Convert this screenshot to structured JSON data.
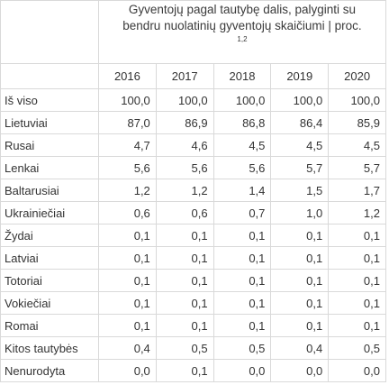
{
  "table": {
    "title": "Gyventojų pagal tautybę dalis, palyginti su bendru nuolatinių gyventojų skaičiumi | proc.",
    "title_line1": "Gyventojų pagal tautybę dalis, palyginti su",
    "title_line2": "bendru nuolatinių gyventojų skaičiumi | proc.",
    "title_footnote": "1,2",
    "years": [
      "2016",
      "2017",
      "2018",
      "2019",
      "2020"
    ],
    "rows": [
      {
        "label": "Iš viso",
        "values": [
          "100,0",
          "100,0",
          "100,0",
          "100,0",
          "100,0"
        ]
      },
      {
        "label": "Lietuviai",
        "values": [
          "87,0",
          "86,9",
          "86,8",
          "86,4",
          "85,9"
        ]
      },
      {
        "label": "Rusai",
        "values": [
          "4,7",
          "4,6",
          "4,5",
          "4,5",
          "4,5"
        ]
      },
      {
        "label": "Lenkai",
        "values": [
          "5,6",
          "5,6",
          "5,6",
          "5,7",
          "5,7"
        ]
      },
      {
        "label": "Baltarusiai",
        "values": [
          "1,2",
          "1,2",
          "1,4",
          "1,5",
          "1,7"
        ]
      },
      {
        "label": "Ukrainiečiai",
        "values": [
          "0,6",
          "0,6",
          "0,7",
          "1,0",
          "1,2"
        ]
      },
      {
        "label": "Žydai",
        "values": [
          "0,1",
          "0,1",
          "0,1",
          "0,1",
          "0,1"
        ]
      },
      {
        "label": "Latviai",
        "values": [
          "0,1",
          "0,1",
          "0,1",
          "0,1",
          "0,1"
        ]
      },
      {
        "label": "Totoriai",
        "values": [
          "0,1",
          "0,1",
          "0,1",
          "0,1",
          "0,1"
        ]
      },
      {
        "label": "Vokiečiai",
        "values": [
          "0,1",
          "0,1",
          "0,1",
          "0,1",
          "0,1"
        ]
      },
      {
        "label": "Romai",
        "values": [
          "0,1",
          "0,1",
          "0,1",
          "0,1",
          "0,1"
        ]
      },
      {
        "label": "Kitos tautybės",
        "values": [
          "0,4",
          "0,5",
          "0,5",
          "0,4",
          "0,5"
        ]
      },
      {
        "label": "Nenurodyta",
        "values": [
          "0,0",
          "0,1",
          "0,0",
          "0,0",
          "0,0"
        ]
      }
    ]
  },
  "colors": {
    "border": "#d9d9d9",
    "text": "#333333",
    "background": "#ffffff"
  }
}
